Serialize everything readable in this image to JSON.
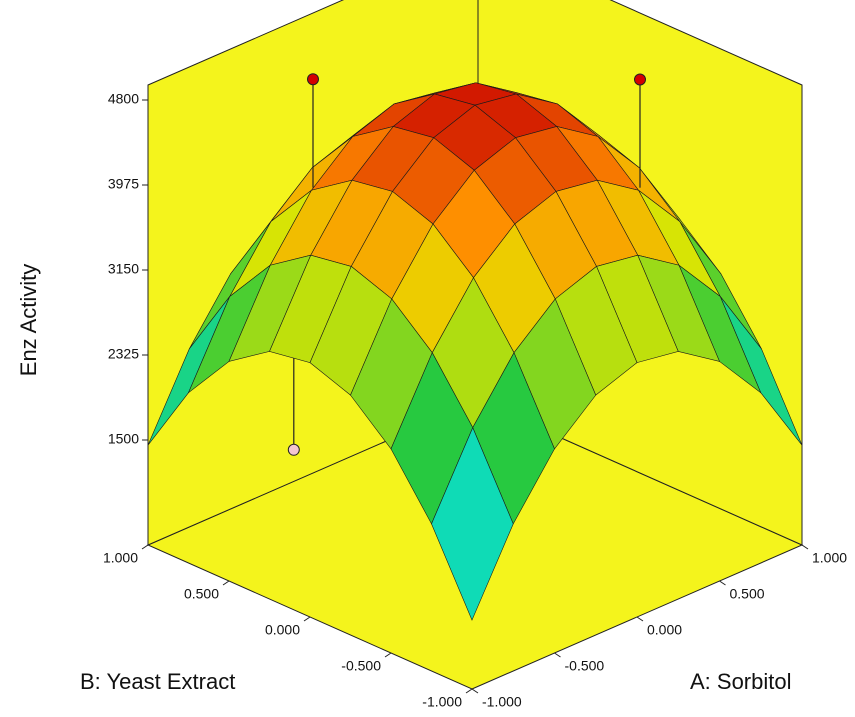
{
  "chart_data": {
    "type": "surface",
    "z_label": "Enz Activity",
    "x_label": "A: Sorbitol",
    "y_label": "B: Yeast Extract",
    "x": [
      -1,
      -0.75,
      -0.5,
      -0.25,
      0,
      0.25,
      0.5,
      0.75,
      1
    ],
    "y": [
      -1,
      -0.75,
      -0.5,
      -0.25,
      0,
      0.25,
      0.5,
      0.75,
      1
    ],
    "z": [
      [
        1150,
        1909,
        2462,
        2809,
        2950,
        2884,
        2612,
        2134,
        1450
      ],
      [
        1909,
        2668,
        3221,
        3568,
        3709,
        3643,
        3371,
        2893,
        2209
      ],
      [
        2462,
        3221,
        3774,
        4121,
        4262,
        4196,
        3924,
        3446,
        2762
      ],
      [
        2809,
        3568,
        4121,
        4468,
        4609,
        4543,
        4271,
        3793,
        3109
      ],
      [
        2950,
        3709,
        4262,
        4609,
        4750,
        4684,
        4412,
        3934,
        3250
      ],
      [
        2884,
        3643,
        4196,
        4543,
        4684,
        4618,
        4346,
        3868,
        3184
      ],
      [
        2612,
        3371,
        3924,
        4271,
        4412,
        4346,
        4074,
        3596,
        2912
      ],
      [
        2134,
        2893,
        3446,
        3793,
        3934,
        3868,
        3596,
        3118,
        2434
      ],
      [
        1450,
        2209,
        2762,
        3109,
        3250,
        3184,
        2912,
        2434,
        1750
      ]
    ],
    "xlim": [
      -1,
      1
    ],
    "ylim": [
      -1,
      1
    ],
    "zlim": [
      1500,
      4800
    ],
    "xticks": [
      {
        "value": -1,
        "label": "-1.000"
      },
      {
        "value": -0.5,
        "label": "-0.500"
      },
      {
        "value": 0,
        "label": "0.000"
      },
      {
        "value": 0.5,
        "label": "0.500"
      },
      {
        "value": 1,
        "label": "1.000"
      }
    ],
    "yticks": [
      {
        "value": -1,
        "label": "-1.000"
      },
      {
        "value": -0.5,
        "label": "-0.500"
      },
      {
        "value": 0,
        "label": "0.000"
      },
      {
        "value": 0.5,
        "label": "0.500"
      },
      {
        "value": 1,
        "label": "1.000"
      }
    ],
    "zticks": [
      1500,
      2325,
      3150,
      3975,
      4800
    ],
    "design_points": {
      "x": [
        0,
        1,
        1,
        -1
      ],
      "y": [
        1,
        0,
        -0.125,
        0.1
      ],
      "z": [
        4303,
        4300,
        2364,
        2034
      ],
      "colors": [
        "#d40000",
        "#d40000",
        "#f4c6d0",
        "#f4c6d0"
      ]
    },
    "wall_color": "#f4f41c"
  }
}
